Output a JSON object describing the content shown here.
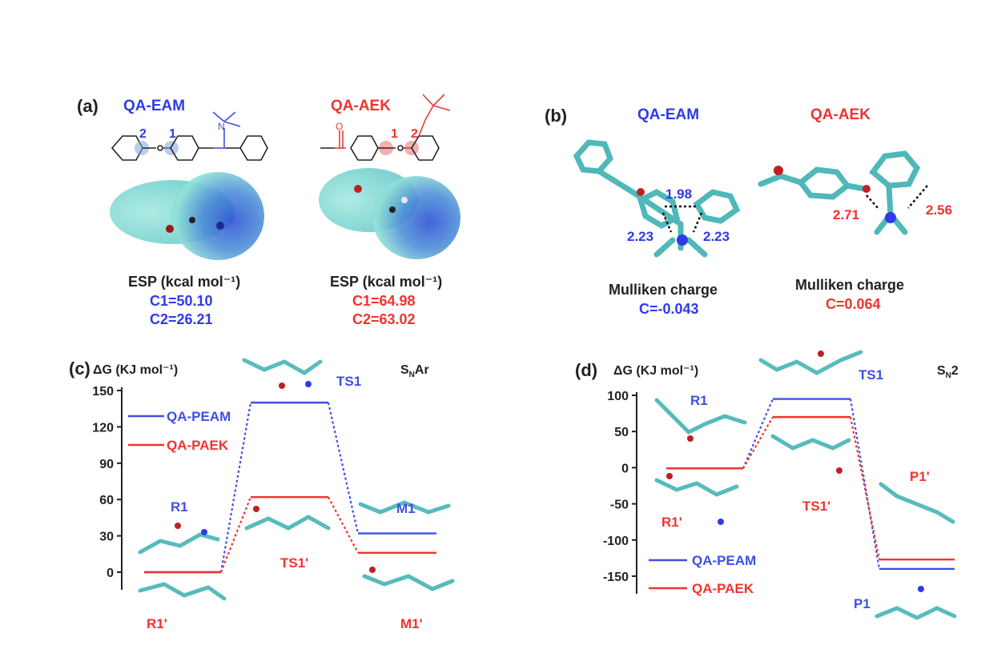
{
  "colors": {
    "blue": "#3f4fe6",
    "red": "#f1332f",
    "axis": "#222222",
    "teal": "#5bc9c9",
    "atom_red": "#d42020",
    "atom_blue": "#2e3be8"
  },
  "panel_a": {
    "label": "(a)",
    "left": {
      "name": "QA-EAM",
      "site1": "1",
      "site2": "2",
      "esp_label": "ESP (kcal mol⁻¹)",
      "c1": "C1=50.10",
      "c2": "C2=26.21"
    },
    "right": {
      "name": "QA-AEK",
      "site1": "1",
      "site2": "2",
      "carbonyl_o": "O",
      "esp_label": "ESP (kcal mol⁻¹)",
      "c1": "C1=64.98",
      "c2": "C2=63.02"
    }
  },
  "panel_b": {
    "label": "(b)",
    "left": {
      "name": "QA-EAM",
      "d_top": "1.98",
      "d_left": "2.23",
      "d_right": "2.23",
      "charge_label": "Mulliken charge",
      "charge": "C=-0.043"
    },
    "right": {
      "name": "QA-AEK",
      "d_left": "2.71",
      "d_right": "2.56",
      "charge_label": "Mulliken charge",
      "charge": "C=0.064"
    }
  },
  "chart_data": [
    {
      "panel": "(c)",
      "type": "line",
      "ylabel": "ΔG (KJ mol⁻¹)",
      "mechanism": "SNAr",
      "ylim": [
        0,
        150
      ],
      "yticks": [
        "150",
        "120",
        "90",
        "60",
        "30",
        "0"
      ],
      "ytick_values": [
        150,
        120,
        90,
        60,
        30,
        0
      ],
      "legend": [
        "QA-PEAM",
        "QA-PAEK"
      ],
      "series": [
        {
          "name": "QA-PEAM",
          "color": "#3f4fe6",
          "values": [
            0,
            140,
            32
          ],
          "labels": [
            "R1",
            "TS1",
            "M1"
          ]
        },
        {
          "name": "QA-PAEK",
          "color": "#f1332f",
          "values": [
            0,
            62,
            16
          ],
          "labels": [
            "R1'",
            "TS1'",
            "M1'"
          ]
        }
      ]
    },
    {
      "panel": "(d)",
      "type": "line",
      "ylabel": "ΔG (KJ mol⁻¹)",
      "mechanism": "SN2",
      "ylim": [
        -150,
        100
      ],
      "yticks": [
        "100",
        "50",
        "0",
        "-50",
        "-100",
        "-150"
      ],
      "ytick_values": [
        100,
        50,
        0,
        -50,
        -100,
        -150
      ],
      "legend": [
        "QA-PEAM",
        "QA-PAEK"
      ],
      "series": [
        {
          "name": "QA-PEAM",
          "color": "#3f4fe6",
          "values": [
            -1,
            95,
            -140
          ],
          "labels": [
            "R1",
            "TS1",
            "P1"
          ]
        },
        {
          "name": "QA-PAEK",
          "color": "#f1332f",
          "values": [
            -1,
            70,
            -127
          ],
          "labels": [
            "R1'",
            "TS1'",
            "P1'"
          ]
        }
      ]
    }
  ]
}
